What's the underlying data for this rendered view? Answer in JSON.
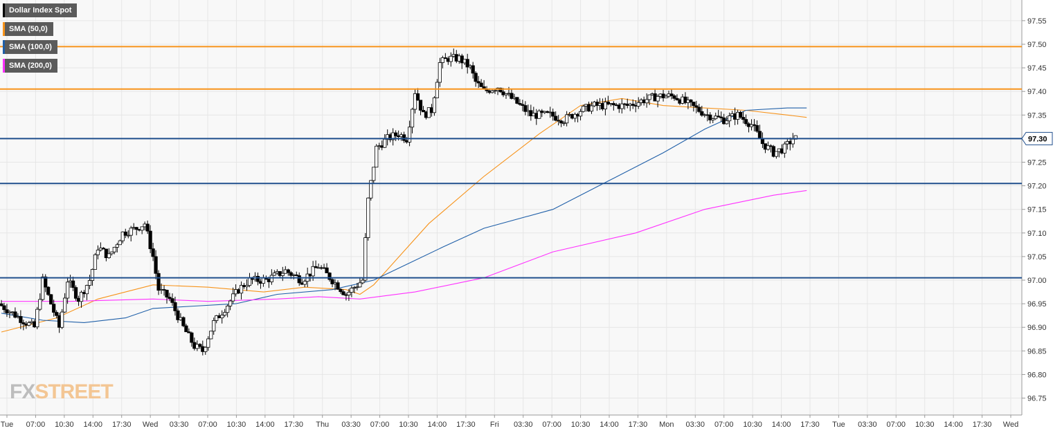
{
  "legend": [
    {
      "label": "Dollar Index Spot",
      "color": "#000000"
    },
    {
      "label": "SMA (50,0)",
      "color": "#f7931a"
    },
    {
      "label": "SMA (100,0)",
      "color": "#1f5fa8"
    },
    {
      "label": "SMA (200,0)",
      "color": "#ff30ff"
    }
  ],
  "logo": {
    "part1": "FX",
    "part2": "STREET"
  },
  "last_price": {
    "label": "97.30",
    "value": 97.3
  },
  "chart_data": {
    "type": "candlestick",
    "title": "Dollar Index Spot",
    "ylim": [
      96.72,
      97.585
    ],
    "y_ticks": [
      "96.75",
      "96.80",
      "96.85",
      "96.90",
      "96.95",
      "97.00",
      "97.05",
      "97.10",
      "97.15",
      "97.20",
      "97.25",
      "97.30",
      "97.35",
      "97.40",
      "97.45",
      "97.50",
      "97.55"
    ],
    "x_ticks": [
      "Tue",
      "07:00",
      "10:30",
      "14:00",
      "17:30",
      "Wed",
      "03:30",
      "07:00",
      "10:30",
      "14:00",
      "17:30",
      "Thu",
      "03:30",
      "07:00",
      "10:30",
      "14:00",
      "17:30",
      "Fri",
      "03:30",
      "07:00",
      "10:30",
      "14:00",
      "17:30",
      "Mon",
      "03:30",
      "07:00",
      "10:30",
      "14:00",
      "17:30",
      "Tue",
      "03:30",
      "07:00",
      "10:30",
      "14:00",
      "17:30",
      "Wed"
    ],
    "x_range_bars": [
      0,
      364
    ],
    "horizontal_levels": [
      {
        "value": 97.495,
        "color": "#f7931a"
      },
      {
        "value": 97.405,
        "color": "#f7931a"
      },
      {
        "value": 97.3,
        "color": "#1f4e8c"
      },
      {
        "value": 97.205,
        "color": "#1f4e8c"
      },
      {
        "value": 97.005,
        "color": "#1f4e8c"
      }
    ],
    "price_anchors": [
      [
        0,
        96.95
      ],
      [
        5,
        96.93
      ],
      [
        10,
        96.91
      ],
      [
        13,
        96.9
      ],
      [
        16,
        97.0
      ],
      [
        19,
        96.95
      ],
      [
        22,
        96.9
      ],
      [
        25,
        97.0
      ],
      [
        29,
        96.96
      ],
      [
        33,
        97.0
      ],
      [
        36,
        97.07
      ],
      [
        40,
        97.05
      ],
      [
        45,
        97.1
      ],
      [
        50,
        97.11
      ],
      [
        53,
        97.12
      ],
      [
        56,
        97.05
      ],
      [
        58,
        96.98
      ],
      [
        62,
        96.96
      ],
      [
        67,
        96.9
      ],
      [
        71,
        96.86
      ],
      [
        74,
        96.85
      ],
      [
        78,
        96.91
      ],
      [
        82,
        96.94
      ],
      [
        87,
        96.98
      ],
      [
        91,
        97.0
      ],
      [
        97,
        97.0
      ],
      [
        104,
        97.02
      ],
      [
        110,
        97.0
      ],
      [
        116,
        97.03
      ],
      [
        121,
        97.0
      ],
      [
        126,
        96.97
      ],
      [
        132,
        97.0
      ],
      [
        134,
        97.17
      ],
      [
        137,
        97.28
      ],
      [
        141,
        97.3
      ],
      [
        145,
        97.31
      ],
      [
        148,
        97.3
      ],
      [
        151,
        97.4
      ],
      [
        154,
        97.35
      ],
      [
        157,
        97.36
      ],
      [
        160,
        97.46
      ],
      [
        163,
        97.47
      ],
      [
        167,
        97.47
      ],
      [
        171,
        97.45
      ],
      [
        173,
        97.42
      ],
      [
        176,
        97.4
      ],
      [
        181,
        97.41
      ],
      [
        187,
        97.38
      ],
      [
        193,
        97.35
      ],
      [
        200,
        97.35
      ],
      [
        205,
        97.34
      ],
      [
        211,
        97.36
      ],
      [
        216,
        97.37
      ],
      [
        222,
        97.37
      ],
      [
        228,
        97.37
      ],
      [
        233,
        97.38
      ],
      [
        239,
        97.39
      ],
      [
        245,
        97.39
      ],
      [
        251,
        97.37
      ],
      [
        257,
        97.35
      ],
      [
        263,
        97.34
      ],
      [
        268,
        97.35
      ],
      [
        273,
        97.33
      ],
      [
        277,
        97.29
      ],
      [
        281,
        97.27
      ],
      [
        285,
        97.28
      ],
      [
        288,
        97.3
      ]
    ],
    "series": [
      {
        "name": "SMA (50,0)",
        "color": "#f7931a",
        "points": [
          [
            0,
            96.89
          ],
          [
            20,
            96.92
          ],
          [
            35,
            96.96
          ],
          [
            55,
            96.99
          ],
          [
            75,
            96.985
          ],
          [
            95,
            96.975
          ],
          [
            110,
            96.985
          ],
          [
            125,
            96.98
          ],
          [
            130,
            96.97
          ],
          [
            135,
            96.99
          ],
          [
            155,
            97.12
          ],
          [
            175,
            97.22
          ],
          [
            195,
            97.31
          ],
          [
            210,
            97.37
          ],
          [
            225,
            97.385
          ],
          [
            240,
            97.37
          ],
          [
            255,
            97.365
          ],
          [
            270,
            97.36
          ],
          [
            285,
            97.35
          ],
          [
            292,
            97.345
          ]
        ]
      },
      {
        "name": "SMA (100,0)",
        "color": "#1f5fa8",
        "points": [
          [
            0,
            96.93
          ],
          [
            15,
            96.915
          ],
          [
            30,
            96.91
          ],
          [
            45,
            96.92
          ],
          [
            55,
            96.94
          ],
          [
            70,
            96.945
          ],
          [
            85,
            96.95
          ],
          [
            100,
            96.97
          ],
          [
            120,
            96.98
          ],
          [
            135,
            97.0
          ],
          [
            160,
            97.07
          ],
          [
            175,
            97.11
          ],
          [
            200,
            97.15
          ],
          [
            220,
            97.21
          ],
          [
            240,
            97.27
          ],
          [
            255,
            97.32
          ],
          [
            270,
            97.36
          ],
          [
            285,
            97.365
          ],
          [
            292,
            97.365
          ]
        ]
      },
      {
        "name": "SMA (200,0)",
        "color": "#ff30ff",
        "points": [
          [
            0,
            96.955
          ],
          [
            25,
            96.955
          ],
          [
            55,
            96.96
          ],
          [
            75,
            96.955
          ],
          [
            100,
            96.96
          ],
          [
            115,
            96.965
          ],
          [
            130,
            96.96
          ],
          [
            150,
            96.975
          ],
          [
            175,
            97.005
          ],
          [
            200,
            97.06
          ],
          [
            230,
            97.1
          ],
          [
            255,
            97.15
          ],
          [
            280,
            97.18
          ],
          [
            292,
            97.19
          ]
        ]
      }
    ]
  }
}
